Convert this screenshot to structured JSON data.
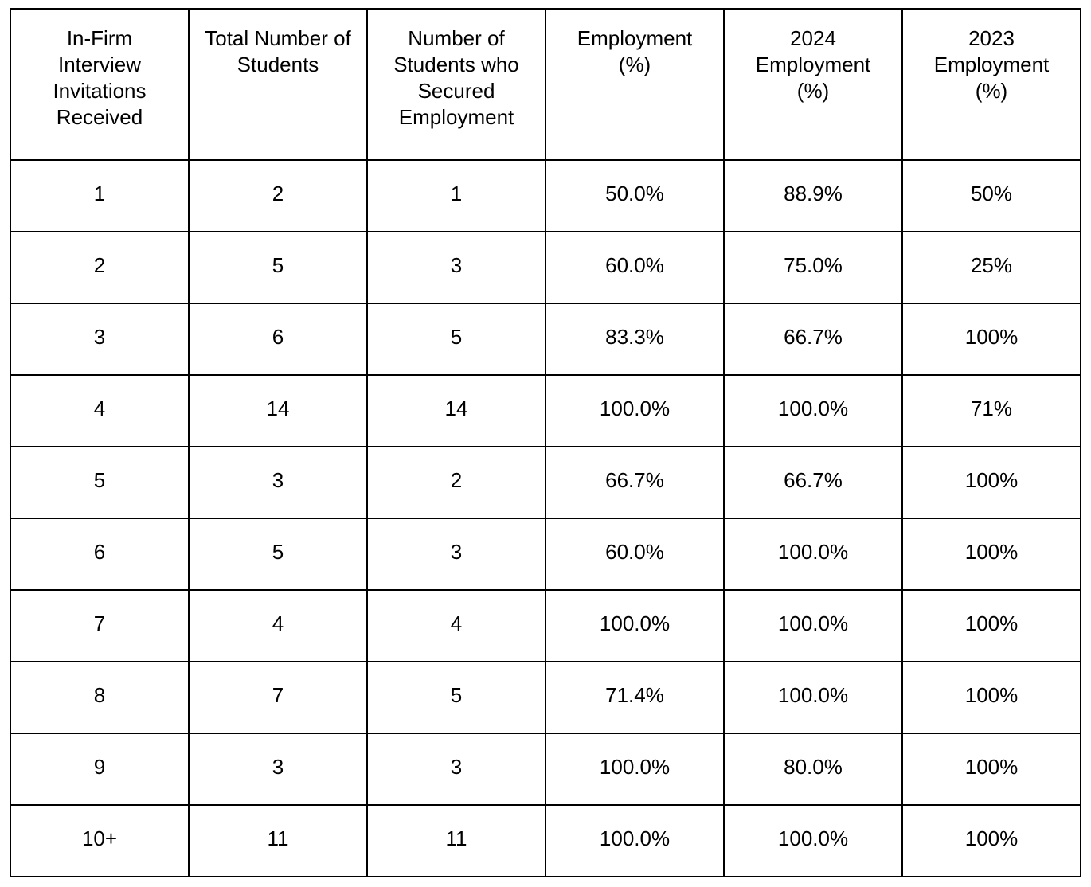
{
  "table": {
    "columns": [
      {
        "label": "In-Firm Interview Invitations Received"
      },
      {
        "label": "Total Number of Students"
      },
      {
        "label": "Number of Students who Secured Employment"
      },
      {
        "label": "Employment (%)"
      },
      {
        "label": "2024 Employment (%)"
      },
      {
        "label": "2023 Employment (%)"
      }
    ],
    "rows": [
      [
        "1",
        "2",
        "1",
        "50.0%",
        "88.9%",
        "50%"
      ],
      [
        "2",
        "5",
        "3",
        "60.0%",
        "75.0%",
        "25%"
      ],
      [
        "3",
        "6",
        "5",
        "83.3%",
        "66.7%",
        "100%"
      ],
      [
        "4",
        "14",
        "14",
        "100.0%",
        "100.0%",
        "71%"
      ],
      [
        "5",
        "3",
        "2",
        "66.7%",
        "66.7%",
        "100%"
      ],
      [
        "6",
        "5",
        "3",
        "60.0%",
        "100.0%",
        "100%"
      ],
      [
        "7",
        "4",
        "4",
        "100.0%",
        "100.0%",
        "100%"
      ],
      [
        "8",
        "7",
        "5",
        "71.4%",
        "100.0%",
        "100%"
      ],
      [
        "9",
        "3",
        "3",
        "100.0%",
        "80.0%",
        "100%"
      ],
      [
        "10+",
        "11",
        "11",
        "100.0%",
        "100.0%",
        "100%"
      ]
    ]
  },
  "colors": {
    "text": "#000000",
    "border": "#000000",
    "background": "#ffffff"
  }
}
